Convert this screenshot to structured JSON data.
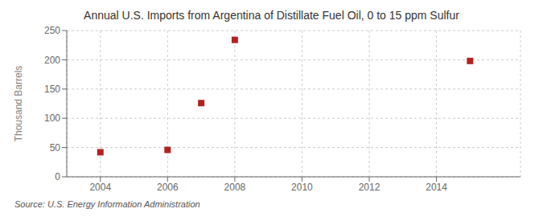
{
  "chart_data": {
    "type": "scatter",
    "title": "Annual U.S. Imports from Argentina of Distillate Fuel Oil, 0 to 15 ppm Sulfur",
    "ylabel": "Thousand Barrels",
    "annotations": [
      "Source: U.S. Energy Information Administration"
    ],
    "x": [
      2004,
      2006,
      2007,
      2008,
      2015
    ],
    "values": [
      42,
      46,
      126,
      234,
      198
    ],
    "color": "#b22222",
    "marker": "square",
    "xlim": [
      2003.0,
      2016.5
    ],
    "ylim": [
      0,
      250
    ],
    "xticks": [
      2004,
      2006,
      2008,
      2010,
      2012,
      2014
    ],
    "yticks": [
      0,
      50,
      100,
      150,
      200,
      250
    ],
    "grid": true
  }
}
